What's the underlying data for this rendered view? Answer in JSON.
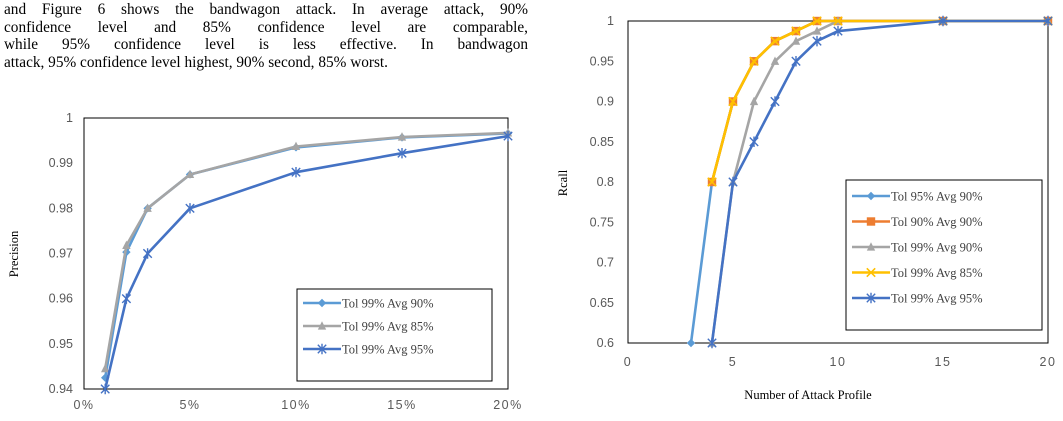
{
  "paragraph": {
    "lines": [
      "and Figure 6 shows the bandwagon attack. In average attack, 90%",
      "confidence level and 85% confidence level are comparable,",
      "while 95% confidence level is less effective. In bandwagon",
      "attack, 95% confidence level highest, 90% second, 85% worst."
    ]
  },
  "chart_data": [
    {
      "type": "line",
      "title": "",
      "xlabel": "",
      "ylabel": "Precision",
      "x": [
        1,
        2,
        3,
        5,
        10,
        15,
        20
      ],
      "xticks": [
        0,
        5,
        10,
        15,
        20
      ],
      "xtick_labels": [
        "0%",
        "5%",
        "10%",
        "15%",
        "20%"
      ],
      "xlim": [
        0,
        20
      ],
      "ylim": [
        0.94,
        1
      ],
      "yticks": [
        0.94,
        0.95,
        0.96,
        0.97,
        0.98,
        0.99,
        1
      ],
      "ytick_labels": [
        "0.94",
        "0.95",
        "0.96",
        "0.97",
        "0.98",
        "0.99",
        "1"
      ],
      "legend_position": "bottom-right",
      "series": [
        {
          "name": "Tol 99% Avg 90%",
          "color": "#5B9BD5",
          "marker": "diamond",
          "values": [
            0.9425,
            0.9703,
            0.98,
            0.9875,
            0.9935,
            0.9957,
            0.9966
          ]
        },
        {
          "name": "Tol 99% Avg 85%",
          "color": "#A5A5A5",
          "marker": "triangle",
          "values": [
            0.9445,
            0.9718,
            0.98,
            0.9875,
            0.9937,
            0.9958,
            0.9967
          ]
        },
        {
          "name": "Tol 99% Avg 95%",
          "color": "#4472C4",
          "marker": "star",
          "values": [
            0.94,
            0.96,
            0.97,
            0.98,
            0.988,
            0.9922,
            0.996
          ]
        }
      ]
    },
    {
      "type": "line",
      "title": "",
      "xlabel": "Number of Attack Profile",
      "ylabel": "Rcall",
      "xticks": [
        0,
        5,
        10,
        15,
        20
      ],
      "xtick_labels": [
        "0",
        "5",
        "10",
        "15",
        "20"
      ],
      "xlim": [
        0,
        20
      ],
      "ylim": [
        0.6,
        1
      ],
      "yticks": [
        0.6,
        0.65,
        0.7,
        0.75,
        0.8,
        0.85,
        0.9,
        0.95,
        1
      ],
      "ytick_labels": [
        "0.6",
        "0.65",
        "0.7",
        "0.75",
        "0.8",
        "0.85",
        "0.9",
        "0.95",
        "1"
      ],
      "legend_position": "bottom-right",
      "series": [
        {
          "name": "Tol 95% Avg 90%",
          "color": "#5B9BD5",
          "marker": "diamond",
          "points": [
            [
              3,
              0.6
            ],
            [
              4,
              0.8
            ],
            [
              5,
              0.9
            ],
            [
              6,
              0.95
            ],
            [
              7,
              0.975
            ],
            [
              8,
              0.9875
            ],
            [
              9,
              1
            ],
            [
              10,
              1
            ],
            [
              15,
              1
            ],
            [
              20,
              1
            ]
          ]
        },
        {
          "name": "Tol 90% Avg 90%",
          "color": "#ED7D31",
          "marker": "square",
          "points": [
            [
              4,
              0.8
            ],
            [
              5,
              0.9
            ],
            [
              6,
              0.95
            ],
            [
              7,
              0.975
            ],
            [
              8,
              0.9875
            ],
            [
              9,
              1
            ],
            [
              10,
              1
            ],
            [
              15,
              1
            ],
            [
              20,
              1
            ]
          ]
        },
        {
          "name": "Tol 99% Avg 90%",
          "color": "#A5A5A5",
          "marker": "triangle",
          "points": [
            [
              4,
              0.6
            ],
            [
              5,
              0.8
            ],
            [
              6,
              0.9
            ],
            [
              7,
              0.95
            ],
            [
              8,
              0.975
            ],
            [
              9,
              0.9875
            ],
            [
              10,
              1
            ],
            [
              15,
              1
            ],
            [
              20,
              1
            ]
          ]
        },
        {
          "name": "Tol 99% Avg 85%",
          "color": "#FFC000",
          "marker": "x",
          "points": [
            [
              4,
              0.8
            ],
            [
              5,
              0.9
            ],
            [
              6,
              0.95
            ],
            [
              7,
              0.975
            ],
            [
              8,
              0.9875
            ],
            [
              9,
              1
            ],
            [
              10,
              1
            ],
            [
              15,
              1
            ],
            [
              20,
              1
            ]
          ]
        },
        {
          "name": "Tol 99% Avg 95%",
          "color": "#4472C4",
          "marker": "star",
          "points": [
            [
              4,
              0.6
            ],
            [
              5,
              0.8
            ],
            [
              6,
              0.85
            ],
            [
              7,
              0.9
            ],
            [
              8,
              0.95
            ],
            [
              9,
              0.975
            ],
            [
              10,
              0.9875
            ],
            [
              15,
              1
            ],
            [
              20,
              1
            ]
          ]
        }
      ]
    }
  ]
}
